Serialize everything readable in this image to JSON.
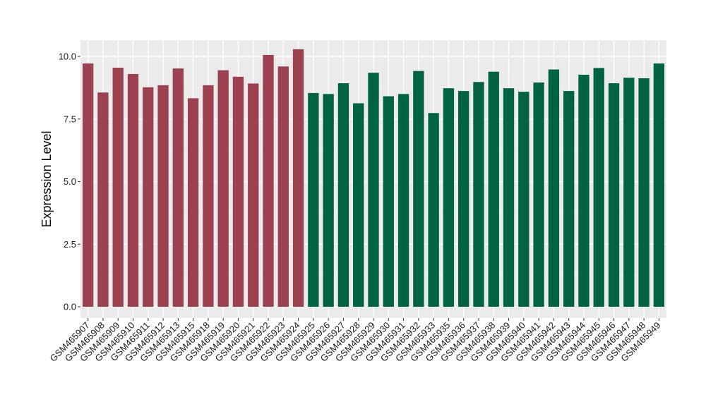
{
  "chart_data": {
    "type": "bar",
    "ylabel": "Expression Level",
    "ylim": [
      -0.45,
      10.65
    ],
    "yticks": [
      0.0,
      2.5,
      5.0,
      7.5,
      10.0
    ],
    "ytick_labels": [
      "0.0",
      "2.5",
      "5.0",
      "7.5",
      "10.0"
    ],
    "grid": true,
    "legend": "none",
    "group_colors": [
      "#9b4150",
      "#006344"
    ],
    "categories": [
      "GSM465907",
      "GSM465908",
      "GSM465909",
      "GSM465910",
      "GSM465911",
      "GSM465912",
      "GSM465913",
      "GSM465915",
      "GSM465918",
      "GSM465919",
      "GSM465920",
      "GSM465921",
      "GSM465922",
      "GSM465923",
      "GSM465924",
      "GSM465925",
      "GSM465926",
      "GSM465927",
      "GSM465928",
      "GSM465929",
      "GSM465930",
      "GSM465931",
      "GSM465932",
      "GSM465933",
      "GSM465935",
      "GSM465936",
      "GSM465937",
      "GSM465938",
      "GSM465939",
      "GSM465940",
      "GSM465941",
      "GSM465942",
      "GSM465943",
      "GSM465944",
      "GSM465945",
      "GSM465946",
      "GSM465947",
      "GSM465948",
      "GSM465949"
    ],
    "values": [
      9.72,
      8.56,
      9.55,
      9.3,
      8.77,
      8.85,
      9.52,
      8.33,
      8.85,
      9.45,
      9.19,
      8.92,
      10.06,
      9.6,
      10.29,
      8.54,
      8.5,
      8.93,
      8.13,
      9.35,
      8.41,
      8.5,
      9.42,
      7.74,
      8.73,
      8.62,
      8.98,
      9.39,
      8.73,
      8.59,
      8.96,
      9.48,
      8.62,
      9.27,
      9.54,
      8.93,
      9.15,
      9.13,
      9.72
    ],
    "groups": [
      0,
      0,
      0,
      0,
      0,
      0,
      0,
      0,
      0,
      0,
      0,
      0,
      0,
      0,
      0,
      1,
      1,
      1,
      1,
      1,
      1,
      1,
      1,
      1,
      1,
      1,
      1,
      1,
      1,
      1,
      1,
      1,
      1,
      1,
      1,
      1,
      1,
      1,
      1
    ]
  }
}
